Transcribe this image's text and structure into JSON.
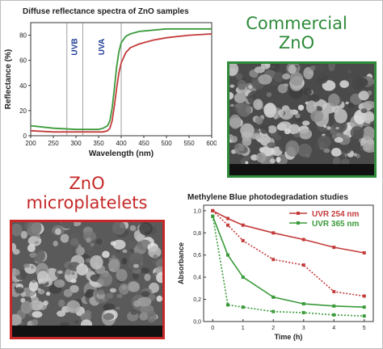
{
  "chart_data": [
    {
      "type": "line",
      "title": "Diffuse reflectance spectra of ZnO samples",
      "xlabel": "Wavelength (nm)",
      "ylabel": "Reflectance (%)",
      "xlim": [
        200,
        600
      ],
      "ylim": [
        0,
        90
      ],
      "xticks": [
        200,
        250,
        300,
        350,
        400,
        450,
        500,
        550,
        600
      ],
      "yticks": [
        0,
        20,
        40,
        60,
        80
      ],
      "annotations": [
        {
          "text": "UVB",
          "from": 280,
          "to": 315
        },
        {
          "text": "UVA",
          "from": 315,
          "to": 400
        }
      ],
      "series": [
        {
          "color": "#3a9a3a",
          "x": [
            200,
            250,
            300,
            330,
            350,
            360,
            370,
            375,
            380,
            385,
            390,
            395,
            400,
            410,
            420,
            440,
            470,
            500,
            550,
            600
          ],
          "y": [
            8,
            6,
            5,
            5,
            5,
            6,
            8,
            12,
            22,
            38,
            55,
            67,
            74,
            79,
            81,
            83,
            84,
            85,
            85,
            85
          ]
        },
        {
          "color": "#c43b3b",
          "x": [
            200,
            250,
            300,
            330,
            350,
            360,
            370,
            375,
            380,
            385,
            390,
            395,
            400,
            410,
            420,
            440,
            470,
            500,
            550,
            600
          ],
          "y": [
            4,
            3,
            3,
            3,
            3,
            3,
            4,
            6,
            12,
            24,
            38,
            50,
            58,
            66,
            70,
            73,
            76,
            78,
            80,
            81
          ]
        }
      ]
    },
    {
      "type": "line",
      "title": "Methylene Blue photodegradation studies",
      "xlabel": "Time (h)",
      "ylabel": "Absorbance",
      "xlim": [
        -0.3,
        5.3
      ],
      "ylim": [
        0,
        1.05
      ],
      "xticks": [
        0,
        1,
        2,
        3,
        4,
        5
      ],
      "yticks": [
        0.0,
        0.2,
        0.4,
        0.6,
        0.8,
        1.0
      ],
      "ytick_labels": [
        "0,0",
        "0,2",
        "0,4",
        "0,6",
        "0,8",
        "1,0"
      ],
      "legend_position": "top-right",
      "legend": [
        {
          "label": "UVR 254 nm",
          "color": "#c43b3b"
        },
        {
          "label": "UVR 365 nm",
          "color": "#3a9a3a"
        }
      ],
      "series": [
        {
          "color": "#c43b3b",
          "style": "solid",
          "x": [
            0,
            0.5,
            1,
            2,
            3,
            4,
            5
          ],
          "y": [
            1.0,
            0.93,
            0.87,
            0.8,
            0.74,
            0.67,
            0.62
          ]
        },
        {
          "color": "#c43b3b",
          "style": "dotted",
          "x": [
            0,
            0.5,
            1,
            2,
            3,
            4,
            5
          ],
          "y": [
            1.0,
            0.87,
            0.73,
            0.56,
            0.51,
            0.27,
            0.23
          ]
        },
        {
          "color": "#3a9a3a",
          "style": "solid",
          "x": [
            0,
            0.5,
            1,
            2,
            3,
            4,
            5
          ],
          "y": [
            0.95,
            0.6,
            0.4,
            0.22,
            0.16,
            0.14,
            0.13
          ]
        },
        {
          "color": "#3a9a3a",
          "style": "dotted",
          "x": [
            0,
            0.5,
            1,
            2,
            3,
            4,
            5
          ],
          "y": [
            0.95,
            0.15,
            0.13,
            0.09,
            0.08,
            0.06,
            0.05
          ]
        }
      ]
    }
  ],
  "labels": {
    "commercial_line1": "Commercial",
    "commercial_line2": "ZnO",
    "micro_line1": "ZnO",
    "micro_line2": "microplatelets"
  },
  "colors": {
    "commercial_text": "#2e8b3a",
    "commercial_border": "#2e8b3a",
    "micro_text": "#c62828",
    "micro_border": "#c62828"
  }
}
